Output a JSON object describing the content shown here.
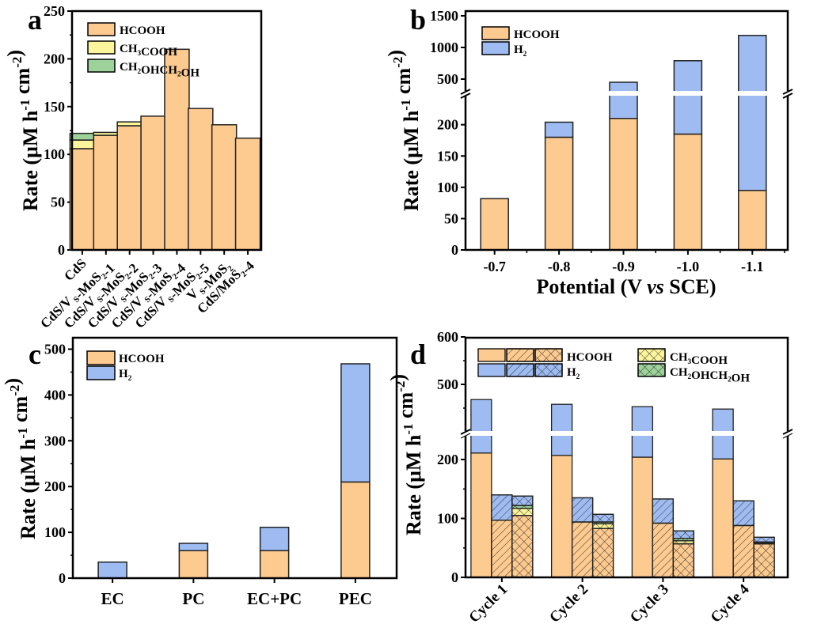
{
  "colors": {
    "HCOOH": "#fdca8f",
    "CH3COOH": "#fcf59b",
    "CH2OHCH2OH": "#9dd39b",
    "H2": "#9ebcf2"
  },
  "chart_data": [
    {
      "panel": "a",
      "type": "bar",
      "stacked": true,
      "ylabel": "Rate (μM h-1 cm-2)",
      "xlabel": "",
      "ylim": [
        0,
        250
      ],
      "yticks": [
        0,
        50,
        100,
        150,
        200,
        250
      ],
      "legend_position": "top-left",
      "categories": [
        "CdS",
        "CdS/V_S-MoS2-1",
        "CdS/V_S-MoS2-2",
        "CdS/V_S-MoS2-3",
        "CdS/V_S-MoS2-4",
        "CdS/V_S-MoS2-5",
        "V_S-MoS2",
        "CdS/MoS2-4"
      ],
      "category_labels": [
        [
          [
            "CdS",
            ""
          ]
        ],
        [
          [
            "CdS/V",
            ""
          ],
          [
            " S",
            "sub"
          ],
          [
            "-MoS",
            ""
          ],
          [
            "2",
            "sub"
          ],
          [
            "-1",
            ""
          ]
        ],
        [
          [
            "CdS/V",
            ""
          ],
          [
            " S",
            "sub"
          ],
          [
            "-MoS",
            ""
          ],
          [
            "2",
            "sub"
          ],
          [
            "-2",
            ""
          ]
        ],
        [
          [
            "CdS/V",
            ""
          ],
          [
            " S",
            "sub"
          ],
          [
            "-MoS",
            ""
          ],
          [
            "2",
            "sub"
          ],
          [
            "-3",
            ""
          ]
        ],
        [
          [
            "CdS/V",
            ""
          ],
          [
            " S",
            "sub"
          ],
          [
            "-MoS",
            ""
          ],
          [
            "2",
            "sub"
          ],
          [
            "-4",
            ""
          ]
        ],
        [
          [
            "CdS/V",
            ""
          ],
          [
            " S",
            "sub"
          ],
          [
            "-MoS",
            ""
          ],
          [
            "2",
            "sub"
          ],
          [
            "-5",
            ""
          ]
        ],
        [
          [
            "V",
            ""
          ],
          [
            " S",
            "sub"
          ],
          [
            "-MoS",
            ""
          ],
          [
            "2",
            "sub"
          ]
        ],
        [
          [
            "CdS/MoS",
            ""
          ],
          [
            "2",
            "sub"
          ],
          [
            "-4",
            ""
          ]
        ]
      ],
      "series": [
        {
          "name": "HCOOH",
          "values": [
            106,
            120,
            130,
            140,
            210,
            148,
            131,
            117
          ]
        },
        {
          "name": "CH3COOH",
          "values": [
            9,
            3,
            4,
            0,
            0,
            0,
            0,
            0
          ]
        },
        {
          "name": "CH2OHCH2OH",
          "values": [
            7,
            0,
            0,
            0,
            0,
            0,
            0,
            0
          ]
        }
      ],
      "legend": [
        {
          "key": "HCOOH",
          "parts": [
            [
              "HCOOH",
              ""
            ]
          ]
        },
        {
          "key": "CH3COOH",
          "parts": [
            [
              "CH",
              ""
            ],
            [
              "3",
              "sub"
            ],
            [
              "COOH",
              ""
            ]
          ]
        },
        {
          "key": "CH2OHCH2OH",
          "parts": [
            [
              "CH",
              ""
            ],
            [
              "2",
              "sub"
            ],
            [
              "OHCH",
              ""
            ],
            [
              "2",
              "sub"
            ],
            [
              "OH",
              ""
            ]
          ]
        }
      ]
    },
    {
      "panel": "b",
      "type": "bar",
      "stacked": true,
      "ylabel": "Rate (μM h-1 cm-2)",
      "xlabel": "Potential (V vs SCE)",
      "y_break": true,
      "ylim_lower": [
        0,
        240
      ],
      "yticks_lower": [
        0,
        50,
        100,
        150,
        200
      ],
      "ylim_upper": [
        350,
        1600
      ],
      "yticks_upper": [
        500,
        1000,
        1500
      ],
      "legend_position": "top-left",
      "categories": [
        "-0.7",
        "-0.8",
        "-0.9",
        "-1.0",
        "-1.1"
      ],
      "series": [
        {
          "name": "HCOOH",
          "values": [
            82,
            180,
            210,
            185,
            95
          ]
        },
        {
          "name": "H2",
          "values": [
            0,
            24,
            240,
            605,
            1095
          ]
        }
      ],
      "totals": [
        82,
        204,
        450,
        790,
        1190
      ],
      "legend": [
        {
          "key": "HCOOH",
          "parts": [
            [
              "HCOOH",
              ""
            ]
          ]
        },
        {
          "key": "H2",
          "parts": [
            [
              "H",
              ""
            ],
            [
              "2",
              "sub"
            ]
          ]
        }
      ]
    },
    {
      "panel": "c",
      "type": "bar",
      "stacked": true,
      "ylabel": "Rate (μM h-1 cm-2)",
      "xlabel": "",
      "ylim": [
        0,
        525
      ],
      "yticks": [
        0,
        100,
        200,
        300,
        400,
        500
      ],
      "legend_position": "top-left",
      "categories": [
        "EC",
        "PC",
        "EC+PC",
        "PEC"
      ],
      "series": [
        {
          "name": "HCOOH",
          "values": [
            0,
            60,
            60,
            210
          ]
        },
        {
          "name": "H2",
          "values": [
            35,
            16,
            51,
            258
          ]
        }
      ],
      "legend": [
        {
          "key": "HCOOH",
          "parts": [
            [
              "HCOOH",
              ""
            ]
          ]
        },
        {
          "key": "H2",
          "parts": [
            [
              "H",
              ""
            ],
            [
              "2",
              "sub"
            ]
          ]
        }
      ]
    },
    {
      "panel": "d",
      "type": "bar",
      "stacked": true,
      "grouped": true,
      "ylabel": "Rate (μM h-1 cm-2)",
      "xlabel": "",
      "y_break": true,
      "ylim_lower": [
        0,
        225
      ],
      "yticks_lower": [
        0,
        100,
        200
      ],
      "ylim_upper": [
        400,
        600
      ],
      "yticks_upper": [
        500,
        600
      ],
      "legend_position": "top",
      "categories": [
        "Cycle 1",
        "Cycle 2",
        "Cycle 3",
        "Cycle 4"
      ],
      "groups": [
        {
          "name": "plain",
          "HCOOH": [
            211,
            207,
            204,
            201
          ],
          "H2": [
            257,
            251,
            249,
            247
          ],
          "CH3COOH": [
            0,
            0,
            0,
            0
          ],
          "CH2OHCH2OH": [
            0,
            0,
            0,
            0
          ]
        },
        {
          "name": "hatched",
          "HCOOH": [
            97,
            94,
            92,
            88
          ],
          "H2": [
            43,
            41,
            41,
            42
          ],
          "CH3COOH": [
            0,
            0,
            0,
            0
          ],
          "CH2OHCH2OH": [
            0,
            0,
            0,
            0
          ]
        },
        {
          "name": "cross-hatched",
          "HCOOH": [
            105,
            83,
            57,
            57
          ],
          "CH3COOH": [
            12,
            8,
            5,
            2
          ],
          "CH2OHCH2OH": [
            5,
            3,
            4,
            1
          ],
          "H2": [
            16,
            13,
            13,
            8
          ]
        }
      ],
      "legend": [
        {
          "key": "HCOOH",
          "parts": [
            [
              "HCOOH",
              ""
            ]
          ]
        },
        {
          "key": "H2",
          "parts": [
            [
              "H",
              ""
            ],
            [
              "2",
              "sub"
            ]
          ]
        },
        {
          "key": "CH3COOH",
          "parts": [
            [
              "CH",
              ""
            ],
            [
              "3",
              "sub"
            ],
            [
              "COOH",
              ""
            ]
          ]
        },
        {
          "key": "CH2OHCH2OH",
          "parts": [
            [
              "CH",
              ""
            ],
            [
              "2",
              "sub"
            ],
            [
              "OHCH",
              ""
            ],
            [
              "2",
              "sub"
            ],
            [
              "OH",
              ""
            ]
          ]
        }
      ]
    }
  ],
  "panel_labels": [
    "a",
    "b",
    "c",
    "d"
  ]
}
